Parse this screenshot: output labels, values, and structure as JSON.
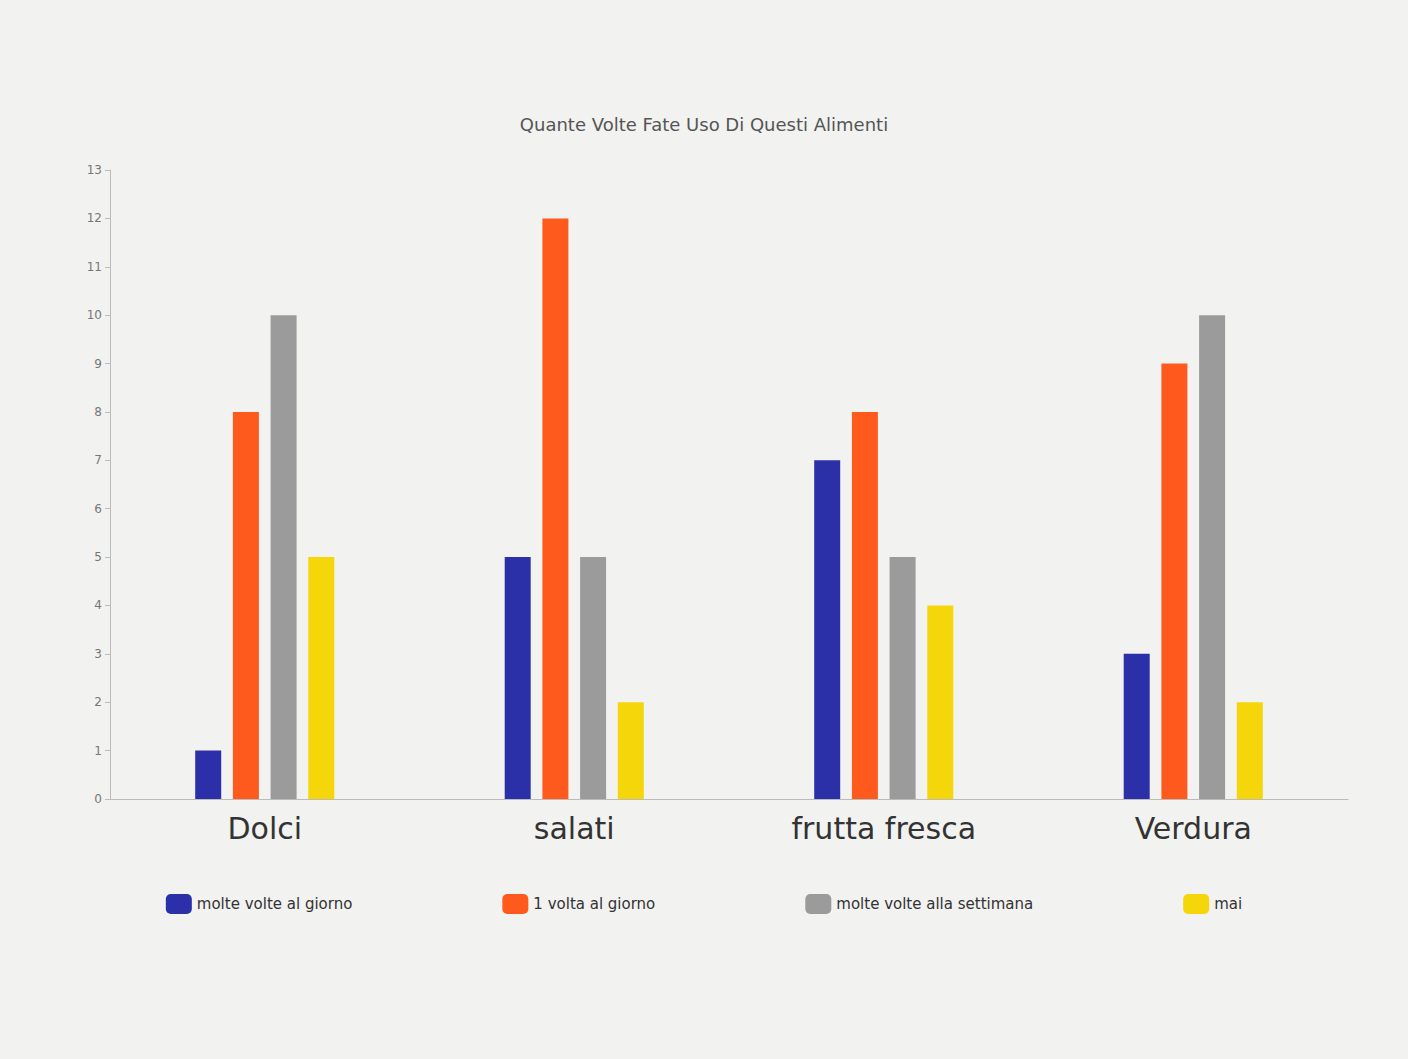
{
  "chart_data": {
    "type": "bar",
    "title": "Quante Volte Fate Uso Di Questi Alimenti",
    "categories": [
      "Dolci",
      "salati",
      "frutta fresca",
      "Verdura"
    ],
    "series": [
      {
        "name": "molte volte al giorno",
        "color": "#2b2fa8",
        "values": [
          1,
          5,
          7,
          3
        ]
      },
      {
        "name": "1 volta al giorno",
        "color": "#ff5a1e",
        "values": [
          8,
          12,
          8,
          9
        ]
      },
      {
        "name": "molte volte alla settimana",
        "color": "#9b9b9b",
        "values": [
          10,
          5,
          5,
          10
        ]
      },
      {
        "name": "mai",
        "color": "#f4d60a",
        "values": [
          5,
          2,
          4,
          2
        ]
      }
    ],
    "ylim": [
      0,
      13
    ],
    "yticks": [
      0,
      1,
      2,
      3,
      4,
      5,
      6,
      7,
      8,
      9,
      10,
      11,
      12,
      13
    ],
    "grid": false,
    "legend": "bottom"
  }
}
